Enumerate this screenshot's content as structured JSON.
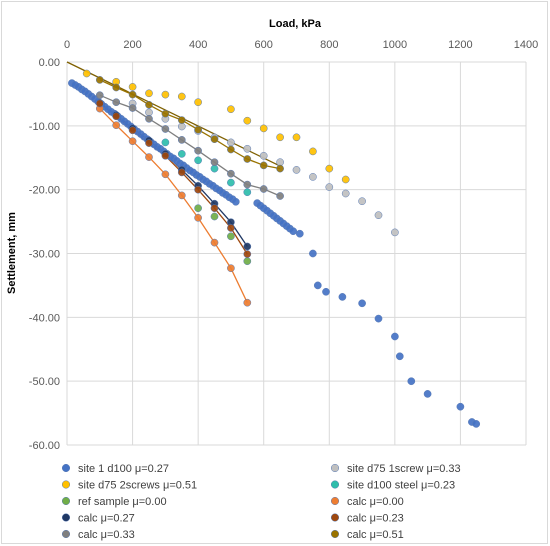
{
  "chart_data": {
    "type": "scatter",
    "xlabel": "Load, kPa",
    "ylabel": "Settlement, mm",
    "x_axis_position": "top",
    "xlim": [
      0,
      1400
    ],
    "ylim": [
      -60,
      0
    ],
    "x_ticks": [
      "0",
      "200",
      "400",
      "600",
      "800",
      "1000",
      "1200",
      "1400"
    ],
    "y_ticks": [
      "0.00",
      "-10.00",
      "-20.00",
      "-30.00",
      "-40.00",
      "-50.00",
      "-60.00"
    ],
    "grid": true,
    "legend_placement": "bottom",
    "series": [
      {
        "name": "site 1 d100 μ=0.27",
        "color": "#4472C4",
        "mode": "markers",
        "points": [
          [
            15,
            -3.3
          ],
          [
            25,
            -3.6
          ],
          [
            35,
            -3.9
          ],
          [
            45,
            -4.3
          ],
          [
            55,
            -4.6
          ],
          [
            65,
            -5.0
          ],
          [
            75,
            -5.4
          ],
          [
            85,
            -5.8
          ],
          [
            95,
            -6.2
          ],
          [
            105,
            -6.6
          ],
          [
            115,
            -7.0
          ],
          [
            125,
            -7.4
          ],
          [
            135,
            -7.8
          ],
          [
            145,
            -8.1
          ],
          [
            155,
            -8.5
          ],
          [
            165,
            -8.9
          ],
          [
            175,
            -9.3
          ],
          [
            185,
            -9.7
          ],
          [
            195,
            -10.1
          ],
          [
            205,
            -10.5
          ],
          [
            215,
            -10.9
          ],
          [
            225,
            -11.3
          ],
          [
            235,
            -11.7
          ],
          [
            245,
            -12.1
          ],
          [
            255,
            -12.5
          ],
          [
            265,
            -12.9
          ],
          [
            275,
            -13.3
          ],
          [
            285,
            -13.6
          ],
          [
            295,
            -14.0
          ],
          [
            305,
            -14.4
          ],
          [
            315,
            -14.8
          ],
          [
            325,
            -15.1
          ],
          [
            335,
            -15.5
          ],
          [
            345,
            -15.9
          ],
          [
            355,
            -16.2
          ],
          [
            365,
            -16.6
          ],
          [
            375,
            -17.0
          ],
          [
            385,
            -17.3
          ],
          [
            395,
            -17.7
          ],
          [
            405,
            -18.0
          ],
          [
            415,
            -18.4
          ],
          [
            425,
            -18.7
          ],
          [
            435,
            -19.1
          ],
          [
            445,
            -19.4
          ],
          [
            455,
            -19.8
          ],
          [
            465,
            -20.1
          ],
          [
            475,
            -20.5
          ],
          [
            485,
            -20.8
          ],
          [
            495,
            -21.2
          ],
          [
            505,
            -21.5
          ],
          [
            515,
            -21.9
          ],
          [
            580,
            -22.1
          ],
          [
            590,
            -22.5
          ],
          [
            600,
            -22.9
          ],
          [
            610,
            -23.3
          ],
          [
            620,
            -23.7
          ],
          [
            630,
            -24.1
          ],
          [
            640,
            -24.5
          ],
          [
            650,
            -24.9
          ],
          [
            660,
            -25.3
          ],
          [
            670,
            -25.7
          ],
          [
            680,
            -26.1
          ],
          [
            690,
            -26.5
          ],
          [
            710,
            -26.9
          ],
          [
            750,
            -30.0
          ],
          [
            765,
            -35.0
          ],
          [
            790,
            -36.0
          ],
          [
            840,
            -36.8
          ],
          [
            900,
            -37.8
          ],
          [
            950,
            -40.2
          ],
          [
            1000,
            -43.0
          ],
          [
            1015,
            -46.1
          ],
          [
            1050,
            -50.0
          ],
          [
            1100,
            -52.0
          ],
          [
            1200,
            -54.0
          ],
          [
            1235,
            -56.4
          ],
          [
            1248,
            -56.7
          ]
        ]
      },
      {
        "name": "site d75 1screw μ=0.33",
        "color": "#BFBFBF",
        "mode": "markers",
        "points": [
          [
            200,
            -6.5
          ],
          [
            250,
            -7.9
          ],
          [
            300,
            -8.9
          ],
          [
            350,
            -10.1
          ],
          [
            400,
            -10.8
          ],
          [
            450,
            -11.8
          ],
          [
            500,
            -12.6
          ],
          [
            550,
            -13.6
          ],
          [
            600,
            -14.7
          ],
          [
            650,
            -15.7
          ],
          [
            700,
            -16.9
          ],
          [
            750,
            -18.0
          ],
          [
            800,
            -19.6
          ],
          [
            850,
            -20.6
          ],
          [
            900,
            -21.8
          ],
          [
            950,
            -24.0
          ],
          [
            1000,
            -26.7
          ]
        ]
      },
      {
        "name": "site d75 2screws μ=0.51",
        "color": "#FFC000",
        "mode": "markers",
        "points": [
          [
            60,
            -1.8
          ],
          [
            150,
            -3.1
          ],
          [
            200,
            -3.9
          ],
          [
            250,
            -4.9
          ],
          [
            300,
            -5.1
          ],
          [
            350,
            -5.4
          ],
          [
            400,
            -6.3
          ],
          [
            500,
            -7.4
          ],
          [
            550,
            -9.2
          ],
          [
            600,
            -10.4
          ],
          [
            650,
            -11.8
          ],
          [
            700,
            -11.8
          ],
          [
            750,
            -14.0
          ],
          [
            800,
            -16.7
          ],
          [
            850,
            -18.4
          ]
        ]
      },
      {
        "name": "site d100 steel μ=0.23",
        "color": "#2EBDAB",
        "mode": "markers",
        "points": [
          [
            300,
            -12.6
          ],
          [
            350,
            -14.4
          ],
          [
            400,
            -15.4
          ],
          [
            450,
            -16.7
          ],
          [
            500,
            -18.9
          ],
          [
            550,
            -20.4
          ]
        ]
      },
      {
        "name": "ref sample μ=0.00",
        "color": "#70AD47",
        "mode": "markers",
        "points": [
          [
            400,
            -22.9
          ],
          [
            450,
            -24.2
          ],
          [
            500,
            -27.3
          ],
          [
            550,
            -31.2
          ]
        ]
      },
      {
        "name": "calc μ=0.00",
        "color": "#ED7D31",
        "mode": "lines+markers",
        "points": [
          [
            100,
            -7.3
          ],
          [
            150,
            -9.9
          ],
          [
            200,
            -12.4
          ],
          [
            250,
            -14.9
          ],
          [
            300,
            -17.6
          ],
          [
            350,
            -20.9
          ],
          [
            400,
            -24.4
          ],
          [
            450,
            -28.3
          ],
          [
            500,
            -32.3
          ],
          [
            550,
            -37.7
          ]
        ]
      },
      {
        "name": "calc μ=0.27",
        "color": "#203864",
        "mode": "lines+markers",
        "points": [
          [
            100,
            -6.4
          ],
          [
            150,
            -8.3
          ],
          [
            200,
            -10.4
          ],
          [
            250,
            -12.3
          ],
          [
            300,
            -14.4
          ],
          [
            350,
            -16.9
          ],
          [
            400,
            -19.4
          ],
          [
            450,
            -22.2
          ],
          [
            500,
            -25.1
          ],
          [
            550,
            -28.9
          ]
        ]
      },
      {
        "name": "calc μ=0.23",
        "color": "#9E480E",
        "mode": "lines+markers",
        "points": [
          [
            100,
            -6.5
          ],
          [
            150,
            -8.5
          ],
          [
            200,
            -10.7
          ],
          [
            250,
            -12.7
          ],
          [
            300,
            -14.7
          ],
          [
            350,
            -17.3
          ],
          [
            400,
            -20.0
          ],
          [
            450,
            -22.9
          ],
          [
            500,
            -26.0
          ],
          [
            550,
            -30.1
          ]
        ]
      },
      {
        "name": "calc μ=0.33",
        "color": "#7F7F7F",
        "mode": "lines+markers",
        "points": [
          [
            100,
            -5.2
          ],
          [
            150,
            -6.3
          ],
          [
            200,
            -7.2
          ],
          [
            250,
            -8.9
          ],
          [
            300,
            -10.5
          ],
          [
            350,
            -12.2
          ],
          [
            400,
            -13.9
          ],
          [
            450,
            -15.7
          ],
          [
            500,
            -17.5
          ],
          [
            550,
            -19.2
          ],
          [
            600,
            -19.9
          ],
          [
            650,
            -21.0
          ]
        ]
      },
      {
        "name": "calc μ=0.51",
        "color": "#997300",
        "mode": "lines+markers",
        "points": [
          [
            100,
            -2.8
          ],
          [
            150,
            -4.0
          ],
          [
            200,
            -5.1
          ],
          [
            250,
            -6.7
          ],
          [
            300,
            -8.1
          ],
          [
            350,
            -9.1
          ],
          [
            400,
            -10.6
          ],
          [
            450,
            -12.1
          ],
          [
            500,
            -13.7
          ],
          [
            550,
            -15.2
          ],
          [
            600,
            -16.2
          ],
          [
            650,
            -16.7
          ]
        ]
      }
    ],
    "trendline": {
      "color": "#7F6000",
      "from": [
        0,
        0
      ],
      "to": [
        650,
        -16.3
      ]
    }
  }
}
